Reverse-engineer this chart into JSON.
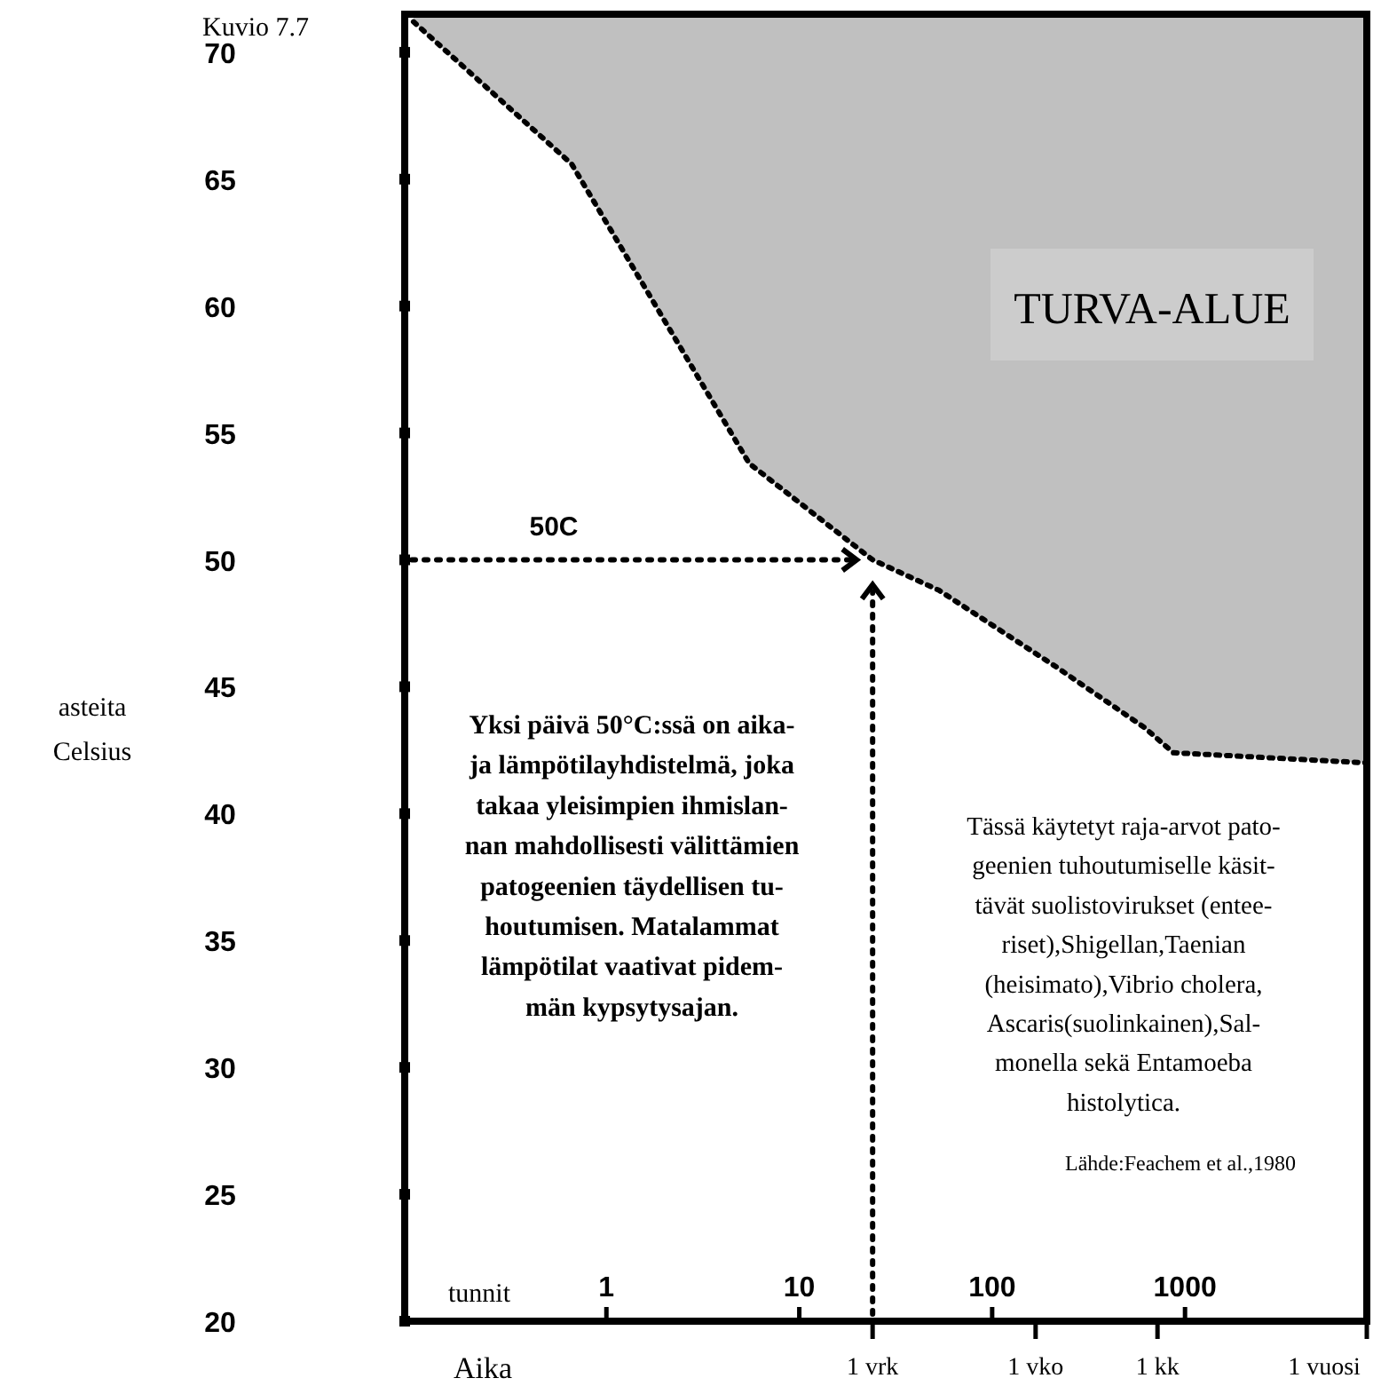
{
  "chart_data": {
    "type": "line",
    "title": "Kuvio 7.7",
    "xlabel": "Aika",
    "ylabel": "asteita\nCelsius",
    "log": "x",
    "xlim": [
      0.09,
      8760
    ],
    "ylim": [
      20,
      71.5
    ],
    "xticks": [
      1,
      10,
      100,
      1000,
      {
        "value": 24,
        "label": null
      },
      {
        "value": 168,
        "label": null
      },
      {
        "value": 720,
        "label": null
      },
      {
        "value": 8760,
        "label": null
      }
    ],
    "yticks": [
      20,
      25,
      30,
      35,
      40,
      45,
      50,
      55,
      60,
      65,
      70
    ],
    "line_style": "dotted",
    "grid": false,
    "series": [
      {
        "color": "#000000",
        "x": [
          0.1,
          0.66,
          5.5,
          24,
          53,
          213,
          614,
          870,
          8760
        ],
        "values": [
          71.2,
          65.6,
          53.8,
          50,
          48.8,
          45.8,
          43.4,
          42.4,
          42
        ],
        "lower": [
          71.2,
          65.6,
          53.8,
          50,
          48.8,
          45.8,
          43.4,
          42.4,
          42
        ],
        "upper": [
          71.5,
          71.5,
          71.5,
          71.5,
          71.5,
          71.5,
          71.5,
          71.5,
          71.5
        ]
      }
    ],
    "ref_lines": [
      {
        "axis": "y",
        "value": 50,
        "label": "50C"
      },
      {
        "axis": "x",
        "value": 24
      }
    ],
    "annotations": [
      "1 vrk",
      "1 vko",
      "1 kk",
      "1 vuosi",
      "TURVA-ALUE",
      "tunnit",
      "Yksi päivä 50°C:ssä on aika-\nja lämpötilayhdistelmä, joka\ntakaa yleisimpien ihmislan-\nnan mahdollisesti välittämien\npatogeenien täydellisen tu-\nhoutumisen. Matalammat\nlämpötilat vaativat pidem-\nmän kypsytysajan.",
      "Tässä käytetyt raja-arvot pato-\ngeenien tuhoutumiselle käsit-\ntävät  suolistovirukset (entee-\nriset),Shigellan,Taenian\n(heisimato),Vibrio cholera,\nAscaris(suolinkainen),Sal-\nmonella sekä Entamoeba\nhistolytica.",
      "Lähde:Feachem et al.,1980"
    ]
  }
}
